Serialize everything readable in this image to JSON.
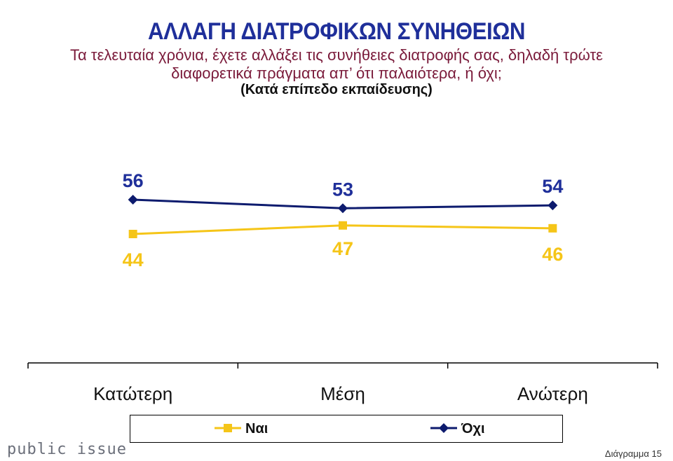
{
  "header": {
    "title": "ΑΛΛΑΓΗ ΔΙΑΤΡΟΦΙΚΩΝ ΣΥΝΗΘΕΙΩΝ",
    "subtitle_line1": "Τα τελευταία χρόνια, έχετε αλλάξει τις συνήθειες διατροφής σας, δηλαδή τρώτε",
    "subtitle_line2": "διαφορετικά πράγματα απ’ ότι παλαιότερα, ή όχι;",
    "note": "(Κατά επίπεδο εκπαίδευσης)"
  },
  "chart_data": {
    "type": "line",
    "categories": [
      "Κατώτερη",
      "Μέση",
      "Ανώτερη"
    ],
    "series": [
      {
        "name": "Ναι",
        "values": [
          44,
          47,
          46
        ],
        "color": "#f5c518",
        "marker": "square"
      },
      {
        "name": "Όχι",
        "values": [
          56,
          53,
          54
        ],
        "color": "#0d1b6e",
        "marker": "diamond"
      }
    ],
    "ylim": [
      0,
      100
    ],
    "grid": false,
    "legend_placement": "bottom"
  },
  "footer": {
    "brand": "public issue",
    "slide_label": "Διάγραμμα 15"
  }
}
